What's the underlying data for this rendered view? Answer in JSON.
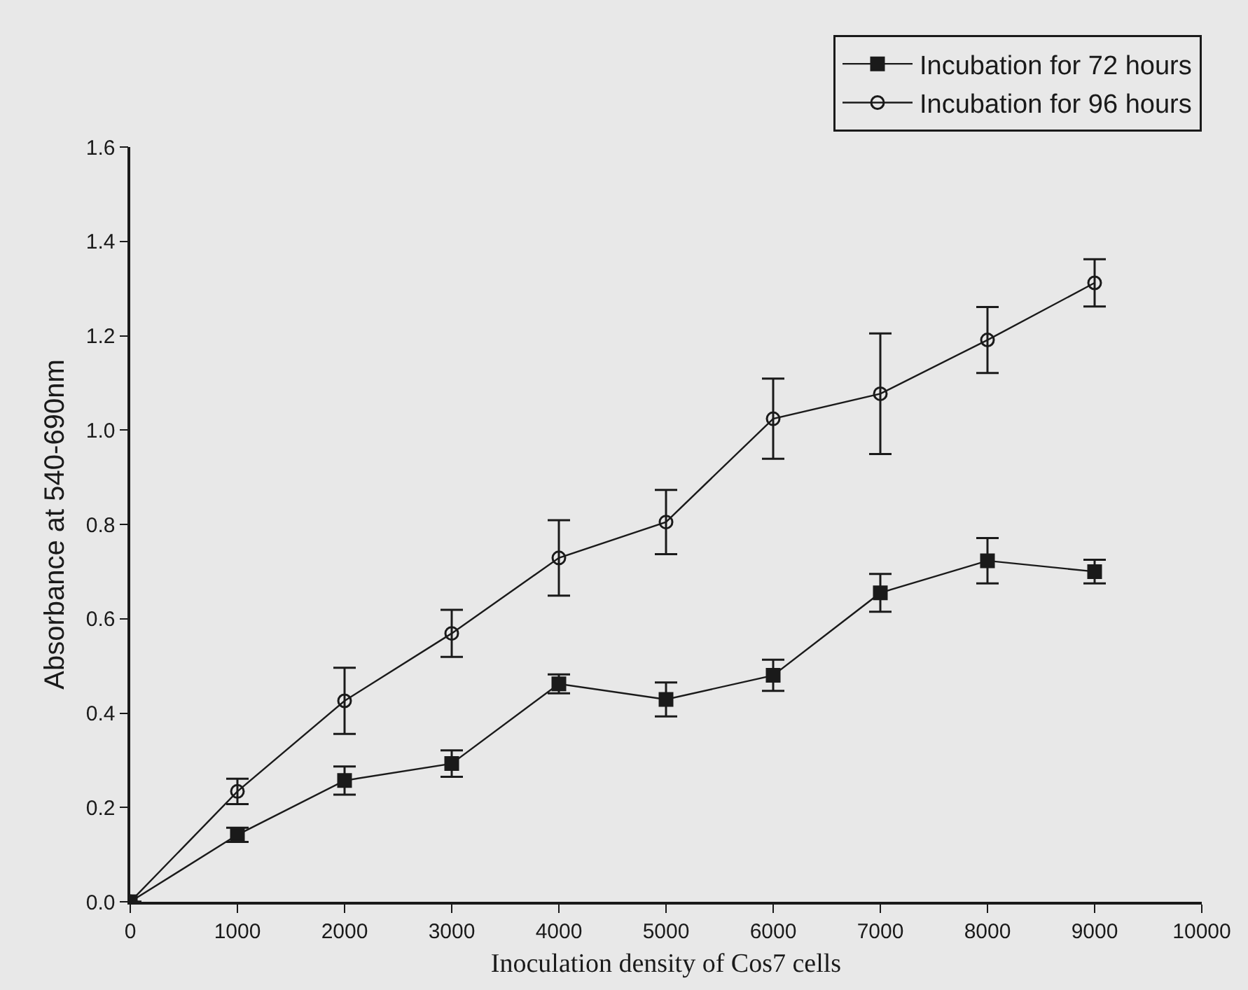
{
  "chart_data": {
    "type": "line",
    "xlabel": "Inoculation density of Cos7 cells",
    "ylabel": "Absorbance at 540-690nm",
    "x": [
      0,
      1000,
      2000,
      3000,
      4000,
      5000,
      6000,
      7000,
      8000,
      9000
    ],
    "series": [
      {
        "name": "Incubation for 72 hours",
        "color": "#1a1a1a",
        "marker": "square",
        "values": [
          0,
          0.142,
          0.257,
          0.293,
          0.462,
          0.429,
          0.48,
          0.655,
          0.723,
          0.7
        ],
        "errors": [
          null,
          0.015,
          0.03,
          0.028,
          0.02,
          0.036,
          0.033,
          0.04,
          0.048,
          0.025
        ]
      },
      {
        "name": "Incubation for 96 hours",
        "color": "#1a1a1a",
        "marker": "circle",
        "values": [
          0,
          0.234,
          0.426,
          0.569,
          0.729,
          0.805,
          1.024,
          1.077,
          1.191,
          1.312
        ],
        "errors": [
          null,
          0.027,
          0.07,
          0.05,
          0.08,
          0.068,
          0.085,
          0.128,
          0.07,
          0.05
        ]
      }
    ],
    "xlim": [
      0,
      10000
    ],
    "xticks": [
      0,
      1000,
      2000,
      3000,
      4000,
      5000,
      6000,
      7000,
      8000,
      9000,
      10000
    ],
    "ylim": [
      0,
      1.6
    ],
    "yticks": [
      {
        "value": 0,
        "label": "0.0"
      },
      {
        "value": 0.2,
        "label": "0.2"
      },
      {
        "value": 0.4,
        "label": "0.4"
      },
      {
        "value": 0.6,
        "label": "0.6"
      },
      {
        "value": 0.8,
        "label": "0.8"
      },
      {
        "value": 1.0,
        "label": "1.0"
      },
      {
        "value": 1.2,
        "label": "1.2"
      },
      {
        "value": 1.4,
        "label": "1.4"
      },
      {
        "value": 1.6,
        "label": "1.6"
      }
    ],
    "grid": false,
    "legend": "top right",
    "line_style": "solid"
  }
}
